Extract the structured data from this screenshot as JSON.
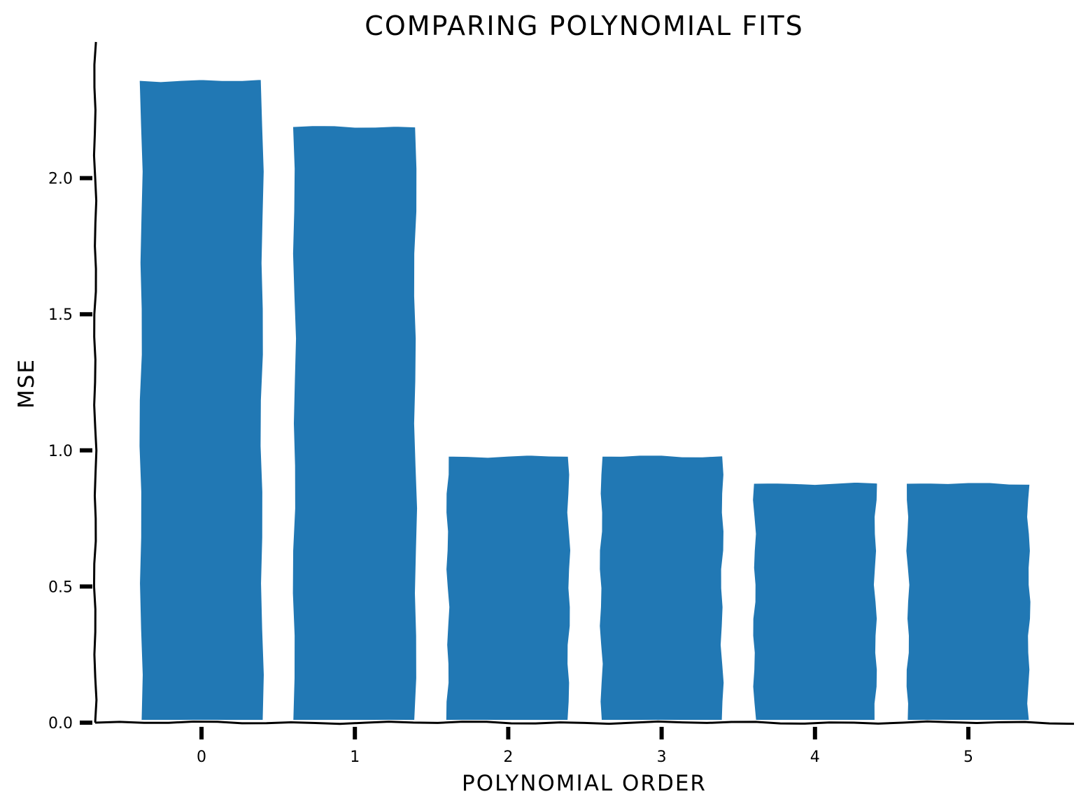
{
  "chart_data": {
    "type": "bar",
    "title": "COMPARING POLYNOMIAL FITS",
    "xlabel": "POLYNOMIAL ORDER",
    "ylabel": "MSE",
    "categories": [
      "0",
      "1",
      "2",
      "3",
      "4",
      "5"
    ],
    "values": [
      2.36,
      2.19,
      0.98,
      0.98,
      0.88,
      0.88
    ],
    "ylim": [
      0,
      2.5
    ],
    "yticks": [
      0.0,
      0.5,
      1.0,
      1.5,
      2.0
    ],
    "ytick_labels": [
      "0.0",
      "0.5",
      "1.0",
      "1.5",
      "2.0"
    ],
    "grid": false,
    "legend": "none",
    "bar_color": "#2178b4",
    "axis_color": "#000000"
  }
}
